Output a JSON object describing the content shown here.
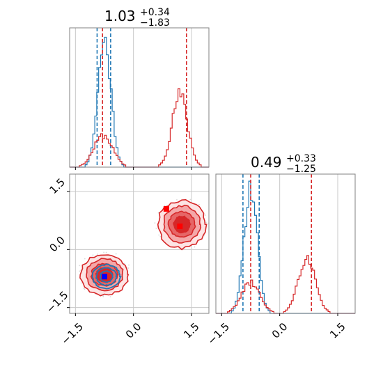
{
  "chart_data": [
    {
      "type": "histogram",
      "panel": "top-left marginal",
      "title": {
        "value": "1.03",
        "upper": "+0.34",
        "lower": "−1.83"
      },
      "xlim": [
        -1.65,
        1.95
      ],
      "grid": true,
      "series": [
        {
          "color": "#1f77b4",
          "center": -0.75,
          "peak": 1.0,
          "sigma": 0.17,
          "quantiles": [
            -0.94,
            -0.59
          ]
        },
        {
          "color": "#d62728",
          "modes": [
            {
              "center": -0.78,
              "sigma": 0.24,
              "peak": 0.25
            },
            {
              "center": 1.2,
              "sigma": 0.2,
              "peak": 0.57
            }
          ],
          "quantiles": [
            -0.8,
            1.37
          ]
        }
      ],
      "hist_ylim_frac": [
        0,
        1.1
      ]
    },
    {
      "type": "histogram",
      "panel": "bottom-right marginal",
      "title": {
        "value": "0.49",
        "upper": "+0.33",
        "lower": "−1.25"
      },
      "xlim": [
        -1.65,
        1.95
      ],
      "xticks": [
        "−1.5",
        "0.0",
        "1.5"
      ],
      "grid": true,
      "series": [
        {
          "color": "#1f77b4",
          "center": -0.75,
          "peak": 1.0,
          "sigma": 0.17,
          "quantiles": [
            -0.95,
            -0.53
          ]
        },
        {
          "color": "#d62728",
          "modes": [
            {
              "center": -0.75,
              "sigma": 0.24,
              "peak": 0.24
            },
            {
              "center": 0.7,
              "sigma": 0.22,
              "peak": 0.45
            }
          ],
          "quantiles": [
            -0.75,
            0.82
          ]
        }
      ],
      "hist_ylim_frac": [
        0,
        1.1
      ]
    },
    {
      "type": "contour",
      "panel": "bottom-left joint",
      "xlim": [
        -1.65,
        1.95
      ],
      "ylim": [
        -1.65,
        1.95
      ],
      "xticks": [
        "−1.5",
        "0.0",
        "1.5"
      ],
      "yticks": [
        "−1.5",
        "0.0",
        "1.5"
      ],
      "grid": true,
      "red_modes": [
        {
          "cx": -0.75,
          "cy": -0.65,
          "sx": 0.28,
          "sy": 0.24
        },
        {
          "cx": 1.25,
          "cy": 0.65,
          "sx": 0.28,
          "sy": 0.28
        }
      ],
      "blue_mode": {
        "cx": -0.7,
        "cy": -0.7,
        "sx": 0.16,
        "sy": 0.14
      },
      "markers": [
        {
          "color": "#ff0000",
          "x": 0.85,
          "y": 1.05
        },
        {
          "color": "#ff0000",
          "x": 1.2,
          "y": 0.6
        },
        {
          "color": "#ff0000",
          "x": -0.75,
          "y": -0.7
        },
        {
          "color": "#0000ff",
          "x": -0.75,
          "y": -0.7
        }
      ]
    }
  ],
  "colors": {
    "blue": "#1f77b4",
    "red": "#d62728",
    "red_fill": "#f3a4a6",
    "grid": "#c8c8c8"
  }
}
